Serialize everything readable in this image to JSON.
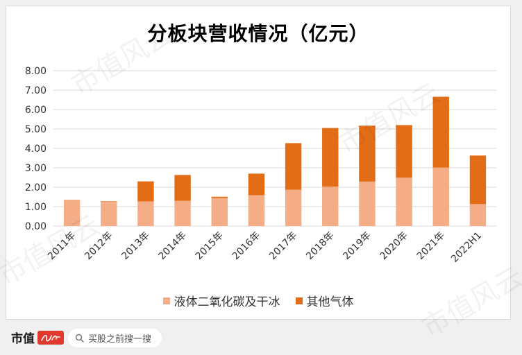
{
  "chart_data": {
    "type": "bar",
    "stacked": true,
    "title": "分板块营收情况（亿元）",
    "categories": [
      "2011年",
      "2012年",
      "2013年",
      "2014年",
      "2015年",
      "2016年",
      "2017年",
      "2018年",
      "2019年",
      "2020年",
      "2021年",
      "2022H1"
    ],
    "series": [
      {
        "name": "液体二氧化碳及干冰",
        "color": "#f4ad87",
        "values": [
          1.32,
          1.26,
          1.27,
          1.3,
          1.45,
          1.59,
          1.87,
          2.03,
          2.29,
          2.49,
          3.01,
          1.13
        ]
      },
      {
        "name": "其他气体",
        "color": "#e36c17",
        "values": [
          0.02,
          0.02,
          1.03,
          1.33,
          0.06,
          1.11,
          2.4,
          3.02,
          2.88,
          2.71,
          3.65,
          2.5
        ]
      }
    ],
    "ylim": [
      0,
      8
    ],
    "yticks": [
      "0.00",
      "1.00",
      "2.00",
      "3.00",
      "4.00",
      "5.00",
      "6.00",
      "7.00",
      "8.00"
    ],
    "grid": true,
    "legend_position": "bottom"
  },
  "watermark": "市值风云",
  "footer": {
    "brand": "市值",
    "search_placeholder": "买股之前搜一搜"
  }
}
